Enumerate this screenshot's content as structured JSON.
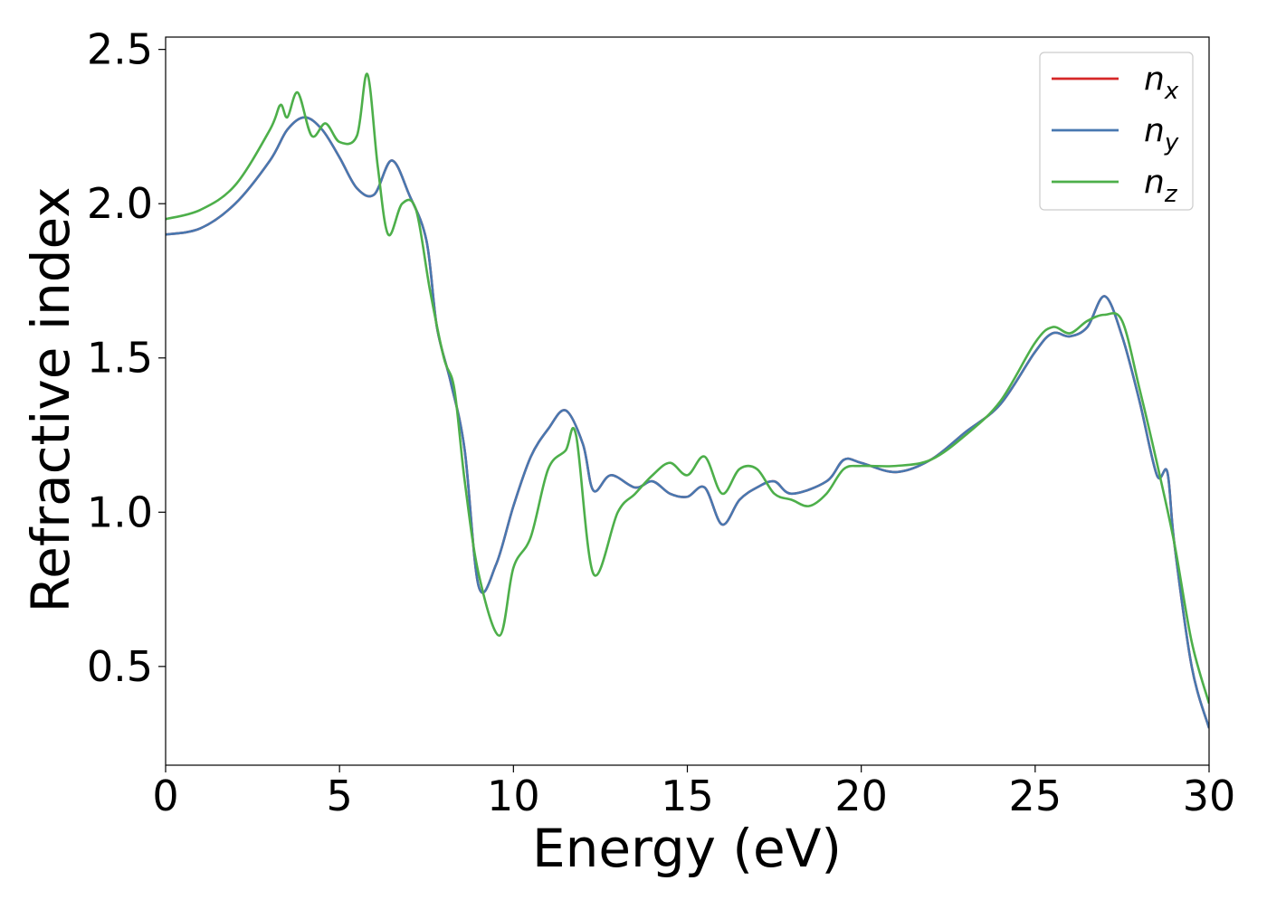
{
  "chart_data": {
    "type": "line",
    "title": "",
    "xlabel": "Energy (eV)",
    "ylabel": "Refractive index",
    "xlim": [
      0,
      30
    ],
    "ylim": [
      0.18,
      2.54
    ],
    "xticks": [
      0,
      5,
      10,
      15,
      20,
      25,
      30
    ],
    "xtick_labels": [
      "0",
      "5",
      "10",
      "15",
      "20",
      "25",
      "30"
    ],
    "yticks": [
      0.5,
      1.0,
      1.5,
      2.0,
      2.5
    ],
    "ytick_labels": [
      "0.5",
      "1.0",
      "1.5",
      "2.0",
      "2.5"
    ],
    "grid": false,
    "legend_position": "top-right",
    "series": [
      {
        "name": "n_x",
        "legend_base": "n",
        "legend_sub": "x",
        "color": "#d62728",
        "points": [
          [
            0,
            1.9
          ],
          [
            1,
            1.92
          ],
          [
            2,
            2.0
          ],
          [
            3,
            2.14
          ],
          [
            3.5,
            2.24
          ],
          [
            4,
            2.28
          ],
          [
            4.5,
            2.24
          ],
          [
            5,
            2.15
          ],
          [
            5.5,
            2.05
          ],
          [
            6,
            2.03
          ],
          [
            6.5,
            2.14
          ],
          [
            7,
            2.03
          ],
          [
            7.5,
            1.88
          ],
          [
            7.8,
            1.6
          ],
          [
            8.2,
            1.42
          ],
          [
            8.6,
            1.2
          ],
          [
            9,
            0.76
          ],
          [
            9.5,
            0.83
          ],
          [
            10,
            1.02
          ],
          [
            10.5,
            1.18
          ],
          [
            11,
            1.27
          ],
          [
            11.5,
            1.33
          ],
          [
            12,
            1.22
          ],
          [
            12.3,
            1.07
          ],
          [
            12.8,
            1.12
          ],
          [
            13.5,
            1.08
          ],
          [
            14,
            1.1
          ],
          [
            14.5,
            1.06
          ],
          [
            15,
            1.05
          ],
          [
            15.5,
            1.08
          ],
          [
            16,
            0.96
          ],
          [
            16.5,
            1.04
          ],
          [
            17,
            1.08
          ],
          [
            17.5,
            1.1
          ],
          [
            18,
            1.06
          ],
          [
            19,
            1.1
          ],
          [
            19.5,
            1.17
          ],
          [
            20,
            1.16
          ],
          [
            21,
            1.13
          ],
          [
            22,
            1.17
          ],
          [
            23,
            1.26
          ],
          [
            24,
            1.35
          ],
          [
            25,
            1.52
          ],
          [
            25.5,
            1.58
          ],
          [
            26,
            1.57
          ],
          [
            26.5,
            1.6
          ],
          [
            27,
            1.7
          ],
          [
            27.5,
            1.57
          ],
          [
            28,
            1.36
          ],
          [
            28.5,
            1.12
          ],
          [
            28.8,
            1.13
          ],
          [
            29,
            0.9
          ],
          [
            29.5,
            0.5
          ],
          [
            30,
            0.3
          ]
        ]
      },
      {
        "name": "n_y",
        "legend_base": "n",
        "legend_sub": "y",
        "color": "#4878b0",
        "points": [
          [
            0,
            1.9
          ],
          [
            1,
            1.92
          ],
          [
            2,
            2.0
          ],
          [
            3,
            2.14
          ],
          [
            3.5,
            2.24
          ],
          [
            4,
            2.28
          ],
          [
            4.5,
            2.24
          ],
          [
            5,
            2.15
          ],
          [
            5.5,
            2.05
          ],
          [
            6,
            2.03
          ],
          [
            6.5,
            2.14
          ],
          [
            7,
            2.03
          ],
          [
            7.5,
            1.88
          ],
          [
            7.8,
            1.6
          ],
          [
            8.2,
            1.42
          ],
          [
            8.6,
            1.2
          ],
          [
            9,
            0.76
          ],
          [
            9.5,
            0.83
          ],
          [
            10,
            1.02
          ],
          [
            10.5,
            1.18
          ],
          [
            11,
            1.27
          ],
          [
            11.5,
            1.33
          ],
          [
            12,
            1.22
          ],
          [
            12.3,
            1.07
          ],
          [
            12.8,
            1.12
          ],
          [
            13.5,
            1.08
          ],
          [
            14,
            1.1
          ],
          [
            14.5,
            1.06
          ],
          [
            15,
            1.05
          ],
          [
            15.5,
            1.08
          ],
          [
            16,
            0.96
          ],
          [
            16.5,
            1.04
          ],
          [
            17,
            1.08
          ],
          [
            17.5,
            1.1
          ],
          [
            18,
            1.06
          ],
          [
            19,
            1.1
          ],
          [
            19.5,
            1.17
          ],
          [
            20,
            1.16
          ],
          [
            21,
            1.13
          ],
          [
            22,
            1.17
          ],
          [
            23,
            1.26
          ],
          [
            24,
            1.35
          ],
          [
            25,
            1.52
          ],
          [
            25.5,
            1.58
          ],
          [
            26,
            1.57
          ],
          [
            26.5,
            1.6
          ],
          [
            27,
            1.7
          ],
          [
            27.5,
            1.57
          ],
          [
            28,
            1.36
          ],
          [
            28.5,
            1.12
          ],
          [
            28.8,
            1.13
          ],
          [
            29,
            0.9
          ],
          [
            29.5,
            0.5
          ],
          [
            30,
            0.3
          ]
        ]
      },
      {
        "name": "n_z",
        "legend_base": "n",
        "legend_sub": "z",
        "color": "#4daf4a",
        "points": [
          [
            0,
            1.95
          ],
          [
            1,
            1.98
          ],
          [
            2,
            2.06
          ],
          [
            3,
            2.24
          ],
          [
            3.3,
            2.32
          ],
          [
            3.5,
            2.28
          ],
          [
            3.8,
            2.36
          ],
          [
            4.2,
            2.22
          ],
          [
            4.6,
            2.26
          ],
          [
            5,
            2.2
          ],
          [
            5.5,
            2.22
          ],
          [
            5.8,
            2.42
          ],
          [
            6.1,
            2.12
          ],
          [
            6.4,
            1.9
          ],
          [
            6.8,
            2.0
          ],
          [
            7.2,
            1.98
          ],
          [
            7.6,
            1.72
          ],
          [
            8,
            1.5
          ],
          [
            8.3,
            1.4
          ],
          [
            8.6,
            1.1
          ],
          [
            9,
            0.8
          ],
          [
            9.6,
            0.6
          ],
          [
            10,
            0.82
          ],
          [
            10.5,
            0.92
          ],
          [
            11,
            1.14
          ],
          [
            11.5,
            1.2
          ],
          [
            11.8,
            1.25
          ],
          [
            12.3,
            0.8
          ],
          [
            13,
            1.0
          ],
          [
            13.5,
            1.06
          ],
          [
            14,
            1.12
          ],
          [
            14.5,
            1.16
          ],
          [
            15,
            1.12
          ],
          [
            15.5,
            1.18
          ],
          [
            16,
            1.06
          ],
          [
            16.5,
            1.14
          ],
          [
            17,
            1.14
          ],
          [
            17.5,
            1.06
          ],
          [
            18,
            1.04
          ],
          [
            18.5,
            1.02
          ],
          [
            19,
            1.06
          ],
          [
            19.5,
            1.14
          ],
          [
            20,
            1.15
          ],
          [
            21,
            1.15
          ],
          [
            22,
            1.17
          ],
          [
            23,
            1.25
          ],
          [
            24,
            1.36
          ],
          [
            25,
            1.55
          ],
          [
            25.5,
            1.6
          ],
          [
            26,
            1.58
          ],
          [
            26.5,
            1.62
          ],
          [
            27,
            1.64
          ],
          [
            27.5,
            1.62
          ],
          [
            28,
            1.4
          ],
          [
            28.5,
            1.16
          ],
          [
            29,
            0.9
          ],
          [
            29.5,
            0.58
          ],
          [
            30,
            0.38
          ]
        ]
      }
    ]
  }
}
